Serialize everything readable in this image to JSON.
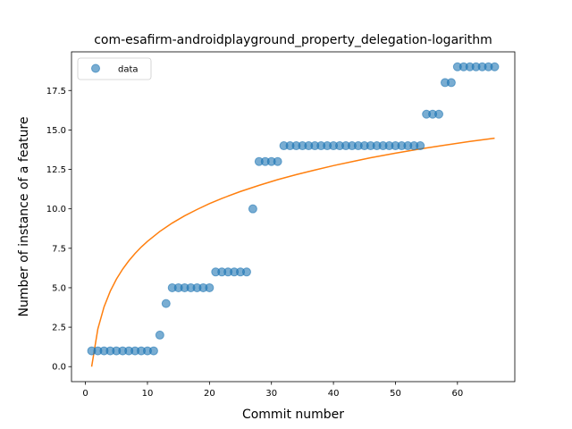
{
  "chart_data": {
    "type": "scatter",
    "title": "com-esafirm-androidplayground_property_delegation-logarithm",
    "xlabel": "Commit number",
    "ylabel": "Number of instance of a feature",
    "xlim": [
      -2.25,
      69.25
    ],
    "ylim": [
      -0.95,
      19.95
    ],
    "xticks": [
      0,
      10,
      20,
      30,
      40,
      50,
      60
    ],
    "xtick_labels": [
      "0",
      "10",
      "20",
      "30",
      "40",
      "50",
      "60"
    ],
    "yticks": [
      0,
      2.5,
      5,
      7.5,
      10,
      12.5,
      15,
      17.5
    ],
    "ytick_labels": [
      "0.0",
      "2.5",
      "5.0",
      "7.5",
      "10.0",
      "12.5",
      "15.0",
      "17.5"
    ],
    "grid": false,
    "legend": {
      "placement": "top-left",
      "entries": [
        "data"
      ]
    },
    "series": [
      {
        "name": "data",
        "kind": "scatter",
        "color": "#1f77b4",
        "x": [
          1,
          2,
          3,
          4,
          5,
          6,
          7,
          8,
          9,
          10,
          11,
          12,
          13,
          14,
          15,
          16,
          17,
          18,
          19,
          20,
          21,
          22,
          23,
          24,
          25,
          26,
          27,
          28,
          29,
          30,
          31,
          32,
          33,
          34,
          35,
          36,
          37,
          38,
          39,
          40,
          41,
          42,
          43,
          44,
          45,
          46,
          47,
          48,
          49,
          50,
          51,
          52,
          53,
          54,
          55,
          56,
          57,
          58,
          59,
          60,
          61,
          62,
          63,
          64,
          65,
          66
        ],
        "y": [
          1,
          1,
          1,
          1,
          1,
          1,
          1,
          1,
          1,
          1,
          1,
          2,
          4,
          5,
          5,
          5,
          5,
          5,
          5,
          5,
          6,
          6,
          6,
          6,
          6,
          6,
          10,
          13,
          13,
          13,
          13,
          14,
          14,
          14,
          14,
          14,
          14,
          14,
          14,
          14,
          14,
          14,
          14,
          14,
          14,
          14,
          14,
          14,
          14,
          14,
          14,
          14,
          14,
          14,
          16,
          16,
          16,
          18,
          18,
          19,
          19,
          19,
          19,
          19,
          19,
          19
        ]
      },
      {
        "kind": "line",
        "color": "#ff7f0e",
        "x": [
          1,
          2,
          3,
          4,
          5,
          6,
          7,
          8,
          9,
          10,
          12,
          14,
          16,
          18,
          20,
          22,
          25,
          28,
          31,
          34,
          37,
          40,
          43,
          46,
          50,
          54,
          58,
          62,
          66
        ],
        "y": [
          0.0,
          2.39,
          3.79,
          4.78,
          5.55,
          6.18,
          6.71,
          7.17,
          7.58,
          7.94,
          8.57,
          9.1,
          9.56,
          9.96,
          10.33,
          10.66,
          11.1,
          11.49,
          11.85,
          12.17,
          12.46,
          12.74,
          12.99,
          13.24,
          13.53,
          13.8,
          14.04,
          14.27,
          14.48
        ]
      }
    ]
  }
}
